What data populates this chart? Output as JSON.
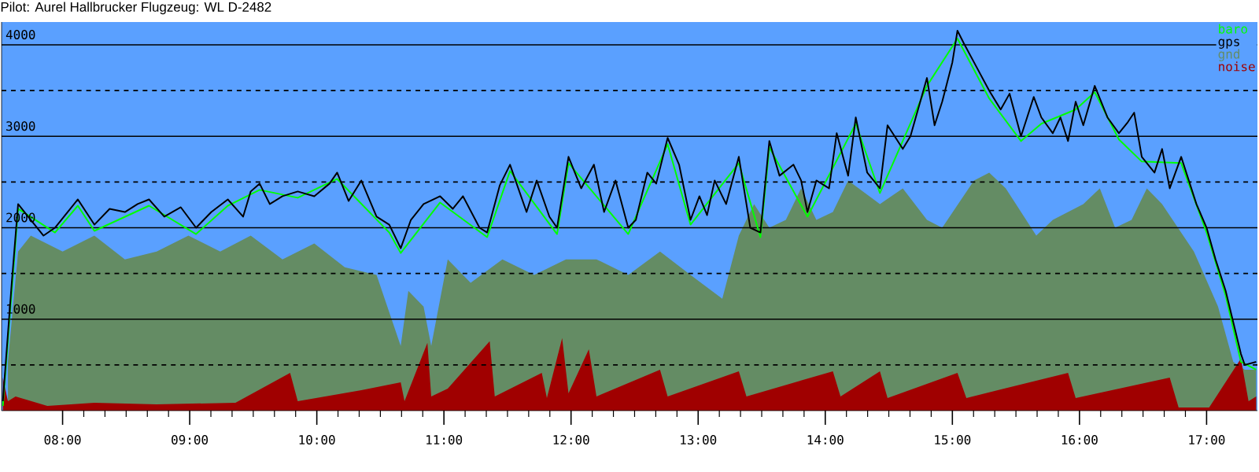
{
  "chart_data": {
    "type": "line",
    "title": "Pilot: Aurel Hallbrucker Flugzeug: WL D-2482",
    "xlim": [
      7.52,
      17.4
    ],
    "ylim": [
      0,
      4250
    ],
    "xticks": [
      {
        "value": 8,
        "label": "08:00"
      },
      {
        "value": 9,
        "label": "09:00"
      },
      {
        "value": 10,
        "label": "10:00"
      },
      {
        "value": 11,
        "label": "11:00"
      },
      {
        "value": 12,
        "label": "12:00"
      },
      {
        "value": 13,
        "label": "13:00"
      },
      {
        "value": 14,
        "label": "14:00"
      },
      {
        "value": 15,
        "label": "15:00"
      },
      {
        "value": 16,
        "label": "16:00"
      },
      {
        "value": 17,
        "label": "17:00"
      }
    ],
    "yticks": [
      {
        "value": 500,
        "label": null
      },
      {
        "value": 1000,
        "label": "1000"
      },
      {
        "value": 1500,
        "label": null
      },
      {
        "value": 2000,
        "label": "2000"
      },
      {
        "value": 2500,
        "label": null
      },
      {
        "value": 3000,
        "label": "3000"
      },
      {
        "value": 3500,
        "label": null
      },
      {
        "value": 4000,
        "label": "4000"
      }
    ],
    "grid": "y",
    "legend": "top right",
    "series": [
      {
        "name": "gnd",
        "type": "area",
        "color": "#648c64",
        "x": [
          7.57,
          7.65,
          7.75,
          8.0,
          8.25,
          8.49,
          8.74,
          8.99,
          9.24,
          9.48,
          9.73,
          9.98,
          10.22,
          10.47,
          10.66,
          10.72,
          10.84,
          10.9,
          11.03,
          11.21,
          11.46,
          11.71,
          11.96,
          12.2,
          12.45,
          12.7,
          12.94,
          13.19,
          13.32,
          13.44,
          13.56,
          13.69,
          13.81,
          13.93,
          14.06,
          14.18,
          14.43,
          14.61,
          14.8,
          14.92,
          15.17,
          15.29,
          15.42,
          15.66,
          15.79,
          16.03,
          16.16,
          16.28,
          16.41,
          16.53,
          16.65,
          16.9,
          17.09,
          17.21,
          17.3,
          17.39
        ],
        "values": [
          534,
          1741,
          1914,
          1741,
          1914,
          1655,
          1741,
          1914,
          1741,
          1914,
          1655,
          1828,
          1569,
          1483,
          707,
          1310,
          1138,
          707,
          1655,
          1397,
          1655,
          1483,
          1655,
          1655,
          1483,
          1741,
          1483,
          1224,
          1914,
          2259,
          2000,
          2086,
          2431,
          2086,
          2172,
          2517,
          2259,
          2431,
          2086,
          2000,
          2517,
          2603,
          2431,
          1914,
          2086,
          2259,
          2431,
          2000,
          2086,
          2431,
          2259,
          1741,
          1138,
          534,
          448,
          448
        ]
      },
      {
        "name": "noise",
        "type": "area",
        "color": "#a00000",
        "x": [
          7.53,
          7.57,
          7.63,
          7.88,
          8.25,
          8.74,
          9.36,
          9.79,
          9.85,
          10.35,
          10.66,
          10.69,
          10.87,
          10.9,
          11.03,
          11.36,
          11.4,
          11.77,
          11.81,
          11.93,
          11.98,
          12.14,
          12.2,
          12.7,
          12.76,
          13.32,
          13.38,
          14.06,
          14.12,
          14.43,
          14.49,
          15.04,
          15.11,
          15.91,
          15.97,
          16.71,
          16.78,
          17.02,
          17.27,
          17.33,
          17.39
        ],
        "values": [
          362,
          103,
          155,
          52,
          86,
          69,
          86,
          414,
          103,
          224,
          310,
          103,
          741,
          155,
          241,
          759,
          155,
          414,
          138,
          793,
          190,
          672,
          155,
          448,
          155,
          431,
          155,
          431,
          155,
          431,
          138,
          414,
          138,
          414,
          138,
          362,
          34,
          34,
          569,
          103,
          155
        ]
      },
      {
        "name": "baro",
        "color": "#00ff00",
        "x": [
          7.53,
          7.6,
          7.65,
          7.94,
          8.12,
          8.25,
          8.68,
          9.05,
          9.3,
          9.55,
          9.85,
          10.16,
          10.57,
          10.66,
          10.97,
          11.34,
          11.52,
          11.89,
          11.98,
          12.45,
          12.76,
          12.94,
          13.32,
          13.49,
          13.56,
          13.86,
          14.24,
          14.43,
          14.8,
          15.04,
          15.29,
          15.54,
          15.7,
          15.97,
          16.12,
          16.31,
          16.49,
          16.8,
          17.0,
          17.15,
          17.27,
          17.39
        ],
        "values": [
          52,
          1310,
          2207,
          1948,
          2241,
          1966,
          2241,
          1931,
          2241,
          2414,
          2328,
          2534,
          1948,
          1724,
          2276,
          1897,
          2621,
          1931,
          2707,
          1931,
          2914,
          2034,
          2707,
          1897,
          2879,
          2121,
          3138,
          2379,
          3552,
          4069,
          3414,
          2948,
          3138,
          3293,
          3483,
          2966,
          2724,
          2707,
          1948,
          1259,
          534,
          448
        ]
      },
      {
        "name": "gps",
        "color": "#000000",
        "x": [
          7.53,
          7.6,
          7.65,
          7.75,
          7.85,
          7.94,
          8.12,
          8.25,
          8.37,
          8.49,
          8.59,
          8.68,
          8.8,
          8.93,
          9.05,
          9.17,
          9.3,
          9.42,
          9.48,
          9.55,
          9.63,
          9.73,
          9.85,
          9.98,
          10.1,
          10.16,
          10.25,
          10.35,
          10.47,
          10.57,
          10.66,
          10.74,
          10.84,
          10.97,
          11.07,
          11.15,
          11.28,
          11.34,
          11.44,
          11.52,
          11.65,
          11.73,
          11.83,
          11.89,
          11.98,
          12.08,
          12.18,
          12.26,
          12.35,
          12.45,
          12.51,
          12.6,
          12.67,
          12.76,
          12.85,
          12.94,
          13.01,
          13.07,
          13.13,
          13.22,
          13.32,
          13.41,
          13.49,
          13.56,
          13.64,
          13.75,
          13.81,
          13.86,
          13.93,
          14.03,
          14.09,
          14.18,
          14.24,
          14.33,
          14.43,
          14.49,
          14.61,
          14.67,
          14.8,
          14.86,
          14.92,
          15.0,
          15.04,
          15.09,
          15.17,
          15.29,
          15.38,
          15.45,
          15.54,
          15.64,
          15.7,
          15.79,
          15.85,
          15.91,
          15.97,
          16.03,
          16.12,
          16.22,
          16.31,
          16.38,
          16.43,
          16.49,
          16.59,
          16.65,
          16.71,
          16.8,
          16.86,
          16.92,
          17.0,
          17.07,
          17.15,
          17.21,
          17.27,
          17.3,
          17.39
        ],
        "values": [
          103,
          1397,
          2259,
          2086,
          1914,
          2000,
          2310,
          2034,
          2207,
          2172,
          2259,
          2310,
          2121,
          2224,
          2000,
          2172,
          2310,
          2121,
          2397,
          2483,
          2259,
          2345,
          2397,
          2345,
          2483,
          2603,
          2293,
          2517,
          2121,
          2034,
          1776,
          2086,
          2259,
          2345,
          2207,
          2345,
          2000,
          1948,
          2466,
          2690,
          2172,
          2517,
          2121,
          2000,
          2776,
          2431,
          2690,
          2172,
          2517,
          2000,
          2086,
          2603,
          2483,
          2983,
          2690,
          2086,
          2345,
          2138,
          2517,
          2259,
          2776,
          2000,
          1948,
          2948,
          2569,
          2690,
          2517,
          2172,
          2517,
          2431,
          3034,
          2569,
          3207,
          2603,
          2431,
          3121,
          2862,
          3000,
          3638,
          3121,
          3379,
          3810,
          4155,
          4017,
          3810,
          3500,
          3293,
          3466,
          3000,
          3431,
          3207,
          3034,
          3207,
          2948,
          3379,
          3121,
          3552,
          3207,
          3034,
          3155,
          3259,
          2776,
          2603,
          2862,
          2431,
          2776,
          2517,
          2259,
          2000,
          1655,
          1310,
          966,
          621,
          500,
          534
        ]
      }
    ]
  }
}
